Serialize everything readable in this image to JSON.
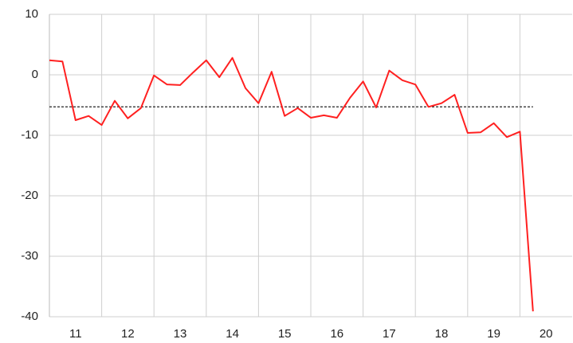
{
  "chart_data": {
    "type": "line",
    "x": [
      10.5,
      10.75,
      11,
      11.25,
      11.5,
      11.75,
      12,
      12.25,
      12.5,
      12.75,
      13,
      13.25,
      13.5,
      13.75,
      14,
      14.25,
      14.5,
      14.75,
      15,
      15.25,
      15.5,
      15.75,
      16,
      16.25,
      16.5,
      16.75,
      17,
      17.25,
      17.5,
      17.75,
      18,
      18.25,
      18.5,
      18.75,
      19,
      19.25,
      19.5,
      19.75
    ],
    "series": [
      {
        "color": "#ff2020",
        "values": [
          2.4,
          2.2,
          -7.5,
          -6.8,
          -8.3,
          -4.3,
          -7.2,
          -5.5,
          -0.1,
          -1.6,
          -1.7,
          0.4,
          2.4,
          -0.4,
          2.8,
          -2.2,
          -4.7,
          0.5,
          -6.8,
          -5.5,
          -7.1,
          -6.7,
          -7.1,
          -3.8,
          -1.1,
          -5.4,
          0.7,
          -0.9,
          -1.6,
          -5.3,
          -4.7,
          -3.3,
          -9.6,
          -9.5,
          -8.0,
          -10.3,
          -9.4,
          -39.1
        ]
      }
    ],
    "reference_line": -5.3,
    "xlim": [
      10.5,
      20.5
    ],
    "xticks": [
      11,
      12,
      13,
      14,
      15,
      16,
      17,
      18,
      19,
      20
    ],
    "ylim": [
      -40,
      10
    ],
    "yticks": [
      -40,
      -30,
      -20,
      -10,
      0,
      10
    ],
    "grid": true
  }
}
